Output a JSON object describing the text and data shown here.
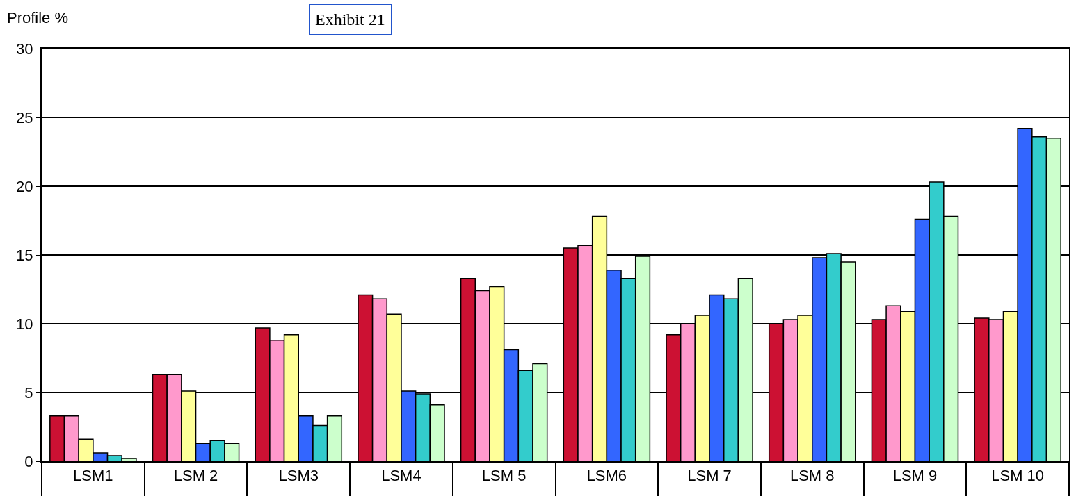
{
  "chart_data": {
    "type": "bar",
    "title": "Exhibit 21",
    "ylabel": "Profile %",
    "categories": [
      "LSM1",
      "LSM 2",
      "LSM3",
      "LSM4",
      "LSM 5",
      "LSM6",
      "LSM 7",
      "LSM 8",
      "LSM 9",
      "LSM 10"
    ],
    "series": [
      {
        "color": "#cc1133",
        "values": [
          3.3,
          6.3,
          9.7,
          12.1,
          13.3,
          15.5,
          9.2,
          10.0,
          10.3,
          10.4
        ]
      },
      {
        "color": "#ff99cc",
        "values": [
          3.3,
          6.3,
          8.8,
          11.8,
          12.4,
          15.7,
          10.0,
          10.3,
          11.3,
          10.3
        ]
      },
      {
        "color": "#ffff99",
        "values": [
          1.6,
          5.1,
          9.2,
          10.7,
          12.7,
          17.8,
          10.6,
          10.6,
          10.9,
          10.9
        ]
      },
      {
        "color": "#3366ff",
        "values": [
          0.6,
          1.3,
          3.3,
          5.1,
          8.1,
          13.9,
          12.1,
          14.8,
          17.6,
          24.2
        ]
      },
      {
        "color": "#33cccc",
        "values": [
          0.4,
          1.5,
          2.6,
          4.9,
          6.6,
          13.3,
          11.8,
          15.1,
          20.3,
          23.6
        ]
      },
      {
        "color": "#ccffcc",
        "values": [
          0.2,
          1.3,
          3.3,
          4.1,
          7.1,
          14.9,
          13.3,
          14.5,
          17.8,
          23.5
        ]
      }
    ],
    "ylim": [
      0,
      30
    ],
    "yticks": [
      0,
      5,
      10,
      15,
      20,
      25,
      30
    ],
    "grid": "y"
  }
}
